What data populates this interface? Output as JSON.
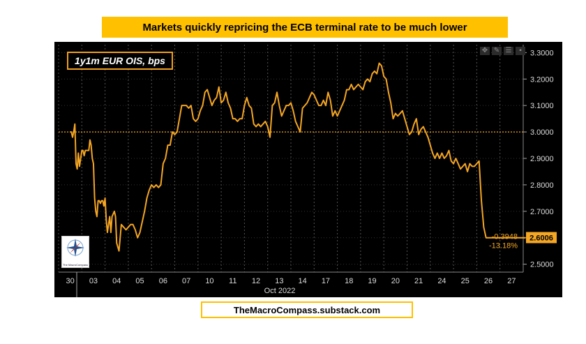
{
  "banner_title": "Markets quickly repricing the ECB terminal rate to be much lower",
  "footer_text": "TheMacroCompass.substack.com",
  "logo_text": "The MacroCompass",
  "colors": {
    "line": "#f5a623",
    "banner": "#ffc000",
    "background": "#000000",
    "reference": "#f5a623"
  },
  "chart_data": {
    "type": "line",
    "title": "1y1m EUR OIS, bps",
    "xlabel": "Oct 2022",
    "ylabel": "",
    "x_ticks": [
      "30",
      "03",
      "04",
      "05",
      "06",
      "07",
      "10",
      "11",
      "12",
      "13",
      "14",
      "17",
      "18",
      "19",
      "20",
      "21",
      "24",
      "25",
      "26",
      "27"
    ],
    "y_ticks": [
      "2.5000",
      "2.6000",
      "2.7000",
      "2.8000",
      "2.9000",
      "3.0000",
      "3.1000",
      "3.2000",
      "3.3000"
    ],
    "ylim": [
      2.47,
      3.33
    ],
    "reference_line": 3.0,
    "grid": true,
    "last_value": "2.6006",
    "change_bps": "-0.3948",
    "change_pct": "-13.18%",
    "series": [
      {
        "name": "1y1m EUR OIS, bps",
        "x": [
          0,
          0.05,
          0.1,
          0.15,
          0.2,
          0.25,
          0.3,
          0.35,
          0.4,
          0.45,
          0.5,
          0.55,
          0.6,
          0.65,
          0.7,
          0.75,
          0.8,
          0.85,
          0.9,
          0.95,
          1.0,
          1.05,
          1.1,
          1.15,
          1.2,
          1.25,
          1.3,
          1.35,
          1.4,
          1.45,
          1.5,
          1.55,
          1.6,
          1.65,
          1.7,
          1.75,
          1.8,
          1.85,
          1.9,
          1.95,
          2.0,
          2.1,
          2.2,
          2.3,
          2.4,
          2.5,
          2.6,
          2.7,
          2.8,
          2.9,
          3.0,
          3.1,
          3.2,
          3.3,
          3.4,
          3.5,
          3.6,
          3.7,
          3.8,
          3.9,
          4.0,
          4.1,
          4.2,
          4.3,
          4.4,
          4.5,
          4.6,
          4.7,
          4.8,
          4.9,
          5.0,
          5.1,
          5.2,
          5.3,
          5.4,
          5.5,
          5.6,
          5.7,
          5.8,
          5.9,
          6.0,
          6.1,
          6.2,
          6.3,
          6.4,
          6.5,
          6.6,
          6.7,
          6.8,
          6.9,
          7.0,
          7.1,
          7.2,
          7.3,
          7.4,
          7.5,
          7.6,
          7.7,
          7.8,
          7.9,
          8.0,
          8.1,
          8.2,
          8.3,
          8.4,
          8.5,
          8.6,
          8.7,
          8.8,
          8.9,
          9.0,
          9.1,
          9.2,
          9.3,
          9.4,
          9.5,
          9.6,
          9.7,
          9.8,
          9.9,
          10.0,
          10.1,
          10.2,
          10.3,
          10.4,
          10.5,
          10.6,
          10.7,
          10.8,
          10.9,
          11.0,
          11.1,
          11.2,
          11.3,
          11.4,
          11.5,
          11.6,
          11.7,
          11.8,
          11.9,
          12.0,
          12.1,
          12.2,
          12.3,
          12.4,
          12.5,
          12.6,
          12.7,
          12.8,
          12.9,
          13.0,
          13.1,
          13.2,
          13.3,
          13.4,
          13.5,
          13.6,
          13.7,
          13.8,
          13.9,
          14.0,
          14.1,
          14.2,
          14.3,
          14.4,
          14.5,
          14.6,
          14.7,
          14.8,
          14.9,
          15.0,
          15.1,
          15.2,
          15.3,
          15.4,
          15.5,
          15.6,
          15.7,
          15.8,
          15.9,
          16.0,
          16.1,
          16.2,
          16.3,
          16.4,
          16.5,
          16.6,
          16.7,
          16.8,
          16.9,
          17.0,
          17.1,
          17.2,
          17.3,
          17.4,
          17.5,
          17.6,
          17.7,
          17.8,
          17.9,
          18.0,
          18.1,
          18.2,
          18.3,
          18.4,
          18.5,
          18.6,
          18.7,
          18.8,
          18.9,
          19.0,
          19.1,
          19.2,
          19.3,
          19.4,
          19.5,
          19.6
        ],
        "values": [
          3.0,
          3.0,
          2.98,
          3.0,
          3.03,
          2.88,
          2.86,
          2.92,
          2.87,
          2.9,
          2.93,
          2.93,
          2.91,
          2.93,
          2.93,
          2.93,
          2.93,
          2.97,
          2.95,
          2.9,
          2.88,
          2.75,
          2.7,
          2.68,
          2.74,
          2.74,
          2.73,
          2.74,
          2.74,
          2.72,
          2.75,
          2.67,
          2.62,
          2.65,
          2.68,
          2.62,
          2.68,
          2.69,
          2.7,
          2.68,
          2.58,
          2.55,
          2.65,
          2.64,
          2.63,
          2.64,
          2.65,
          2.65,
          2.63,
          2.6,
          2.62,
          2.66,
          2.7,
          2.75,
          2.78,
          2.8,
          2.79,
          2.8,
          2.79,
          2.8,
          2.88,
          2.9,
          2.95,
          2.95,
          3.0,
          2.99,
          3.0,
          3.05,
          3.1,
          3.1,
          3.1,
          3.09,
          3.1,
          3.05,
          3.04,
          3.05,
          3.08,
          3.1,
          3.15,
          3.16,
          3.13,
          3.1,
          3.12,
          3.13,
          3.17,
          3.11,
          3.12,
          3.15,
          3.11,
          3.09,
          3.05,
          3.05,
          3.04,
          3.05,
          3.05,
          3.1,
          3.13,
          3.1,
          3.09,
          3.03,
          3.02,
          3.03,
          3.02,
          3.03,
          3.04,
          3.02,
          2.98,
          3.1,
          3.11,
          3.15,
          3.1,
          3.06,
          3.08,
          3.1,
          3.1,
          3.11,
          3.08,
          3.04,
          3.02,
          3.0,
          3.09,
          3.1,
          3.11,
          3.13,
          3.15,
          3.14,
          3.12,
          3.1,
          3.1,
          3.12,
          3.1,
          3.15,
          3.12,
          3.06,
          3.08,
          3.06,
          3.08,
          3.1,
          3.12,
          3.16,
          3.16,
          3.18,
          3.16,
          3.17,
          3.18,
          3.17,
          3.16,
          3.19,
          3.2,
          3.19,
          3.22,
          3.23,
          3.22,
          3.26,
          3.25,
          3.21,
          3.2,
          3.15,
          3.11,
          3.05,
          3.07,
          3.06,
          3.07,
          3.08,
          3.05,
          3.02,
          2.99,
          3.0,
          3.03,
          3.05,
          2.99,
          3.01,
          3.02,
          3.0,
          2.98,
          2.95,
          2.92,
          2.9,
          2.92,
          2.9,
          2.92,
          2.9,
          2.91,
          2.93,
          2.89,
          2.88,
          2.9,
          2.88,
          2.86,
          2.87,
          2.88,
          2.85,
          2.88,
          2.87,
          2.87,
          2.88,
          2.89,
          2.74,
          2.64,
          2.6,
          2.6,
          2.6,
          2.6,
          2.6,
          2.6,
          2.6,
          2.6,
          2.6,
          2.6,
          2.6,
          2.6,
          2.6,
          2.6,
          2.6,
          2.6,
          2.6,
          2.6
        ]
      }
    ]
  }
}
